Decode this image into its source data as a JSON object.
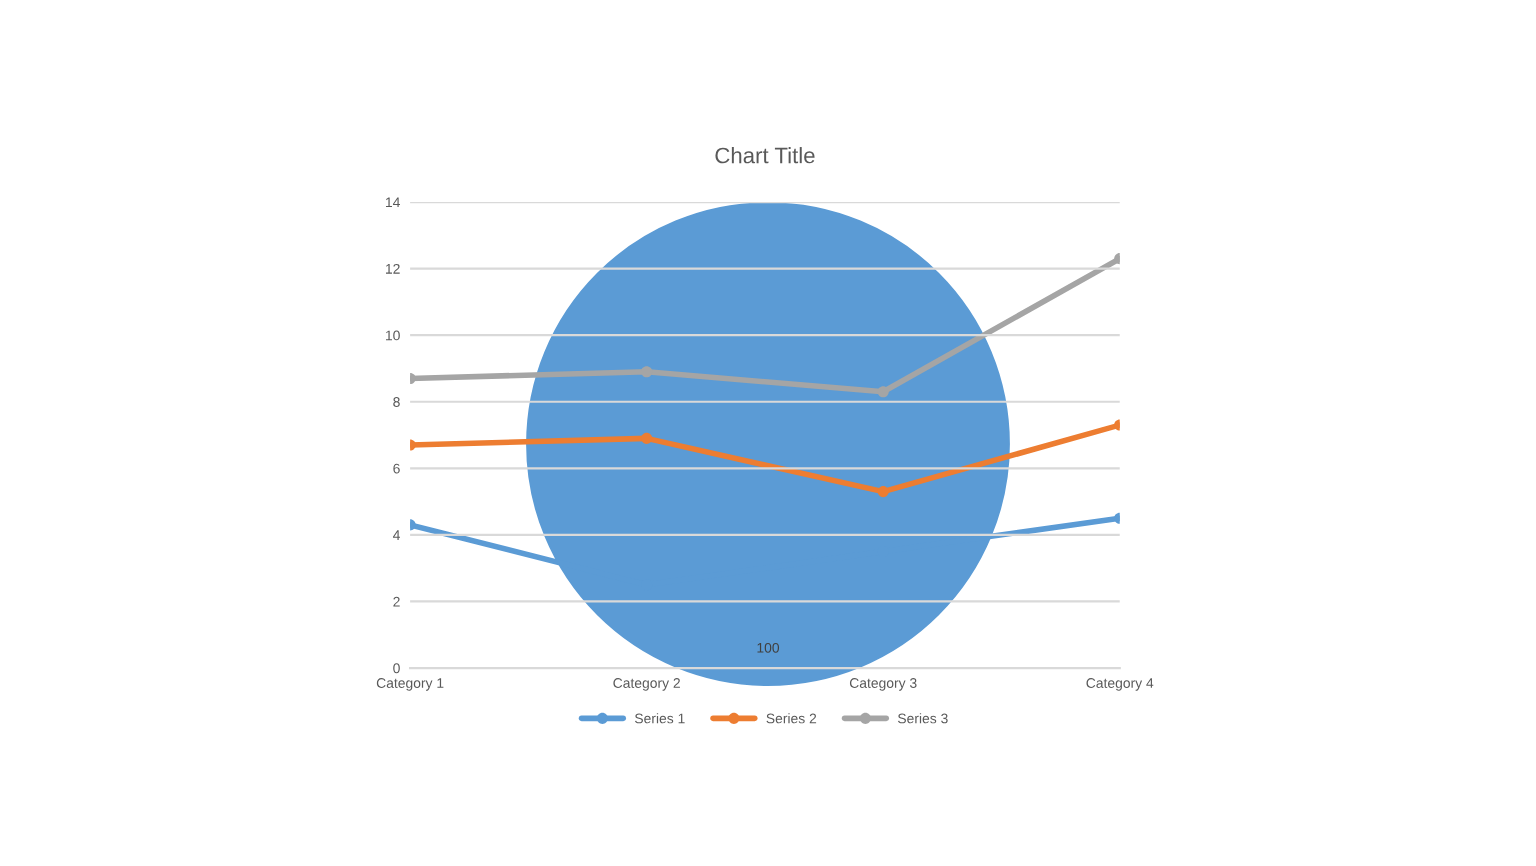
{
  "chart_data": [
    {
      "type": "line",
      "title": "Chart Title",
      "categories": [
        "Category 1",
        "Category 2",
        "Category 3",
        "Category 4"
      ],
      "marker": "circle",
      "line_style": "solid",
      "grid": "y",
      "legend": "bottom",
      "ylim": [
        0,
        14
      ],
      "yticks": [
        0,
        2,
        4,
        6,
        8,
        10,
        12,
        14
      ],
      "series": [
        {
          "name": "Series 1",
          "color": "#5b9bd5",
          "values": [
            4.3,
            2.5,
            3.5,
            4.5
          ]
        },
        {
          "name": "Series 2",
          "color": "#ed7d31",
          "values": [
            6.7,
            6.9,
            5.3,
            7.3
          ]
        },
        {
          "name": "Series 3",
          "color": "#a5a5a5",
          "values": [
            8.7,
            8.9,
            8.3,
            12.3
          ]
        }
      ]
    },
    {
      "type": "pie",
      "categories": [
        null
      ],
      "values": [
        100
      ],
      "colors": [
        "#5b9bd5"
      ],
      "data_labels": true
    }
  ]
}
